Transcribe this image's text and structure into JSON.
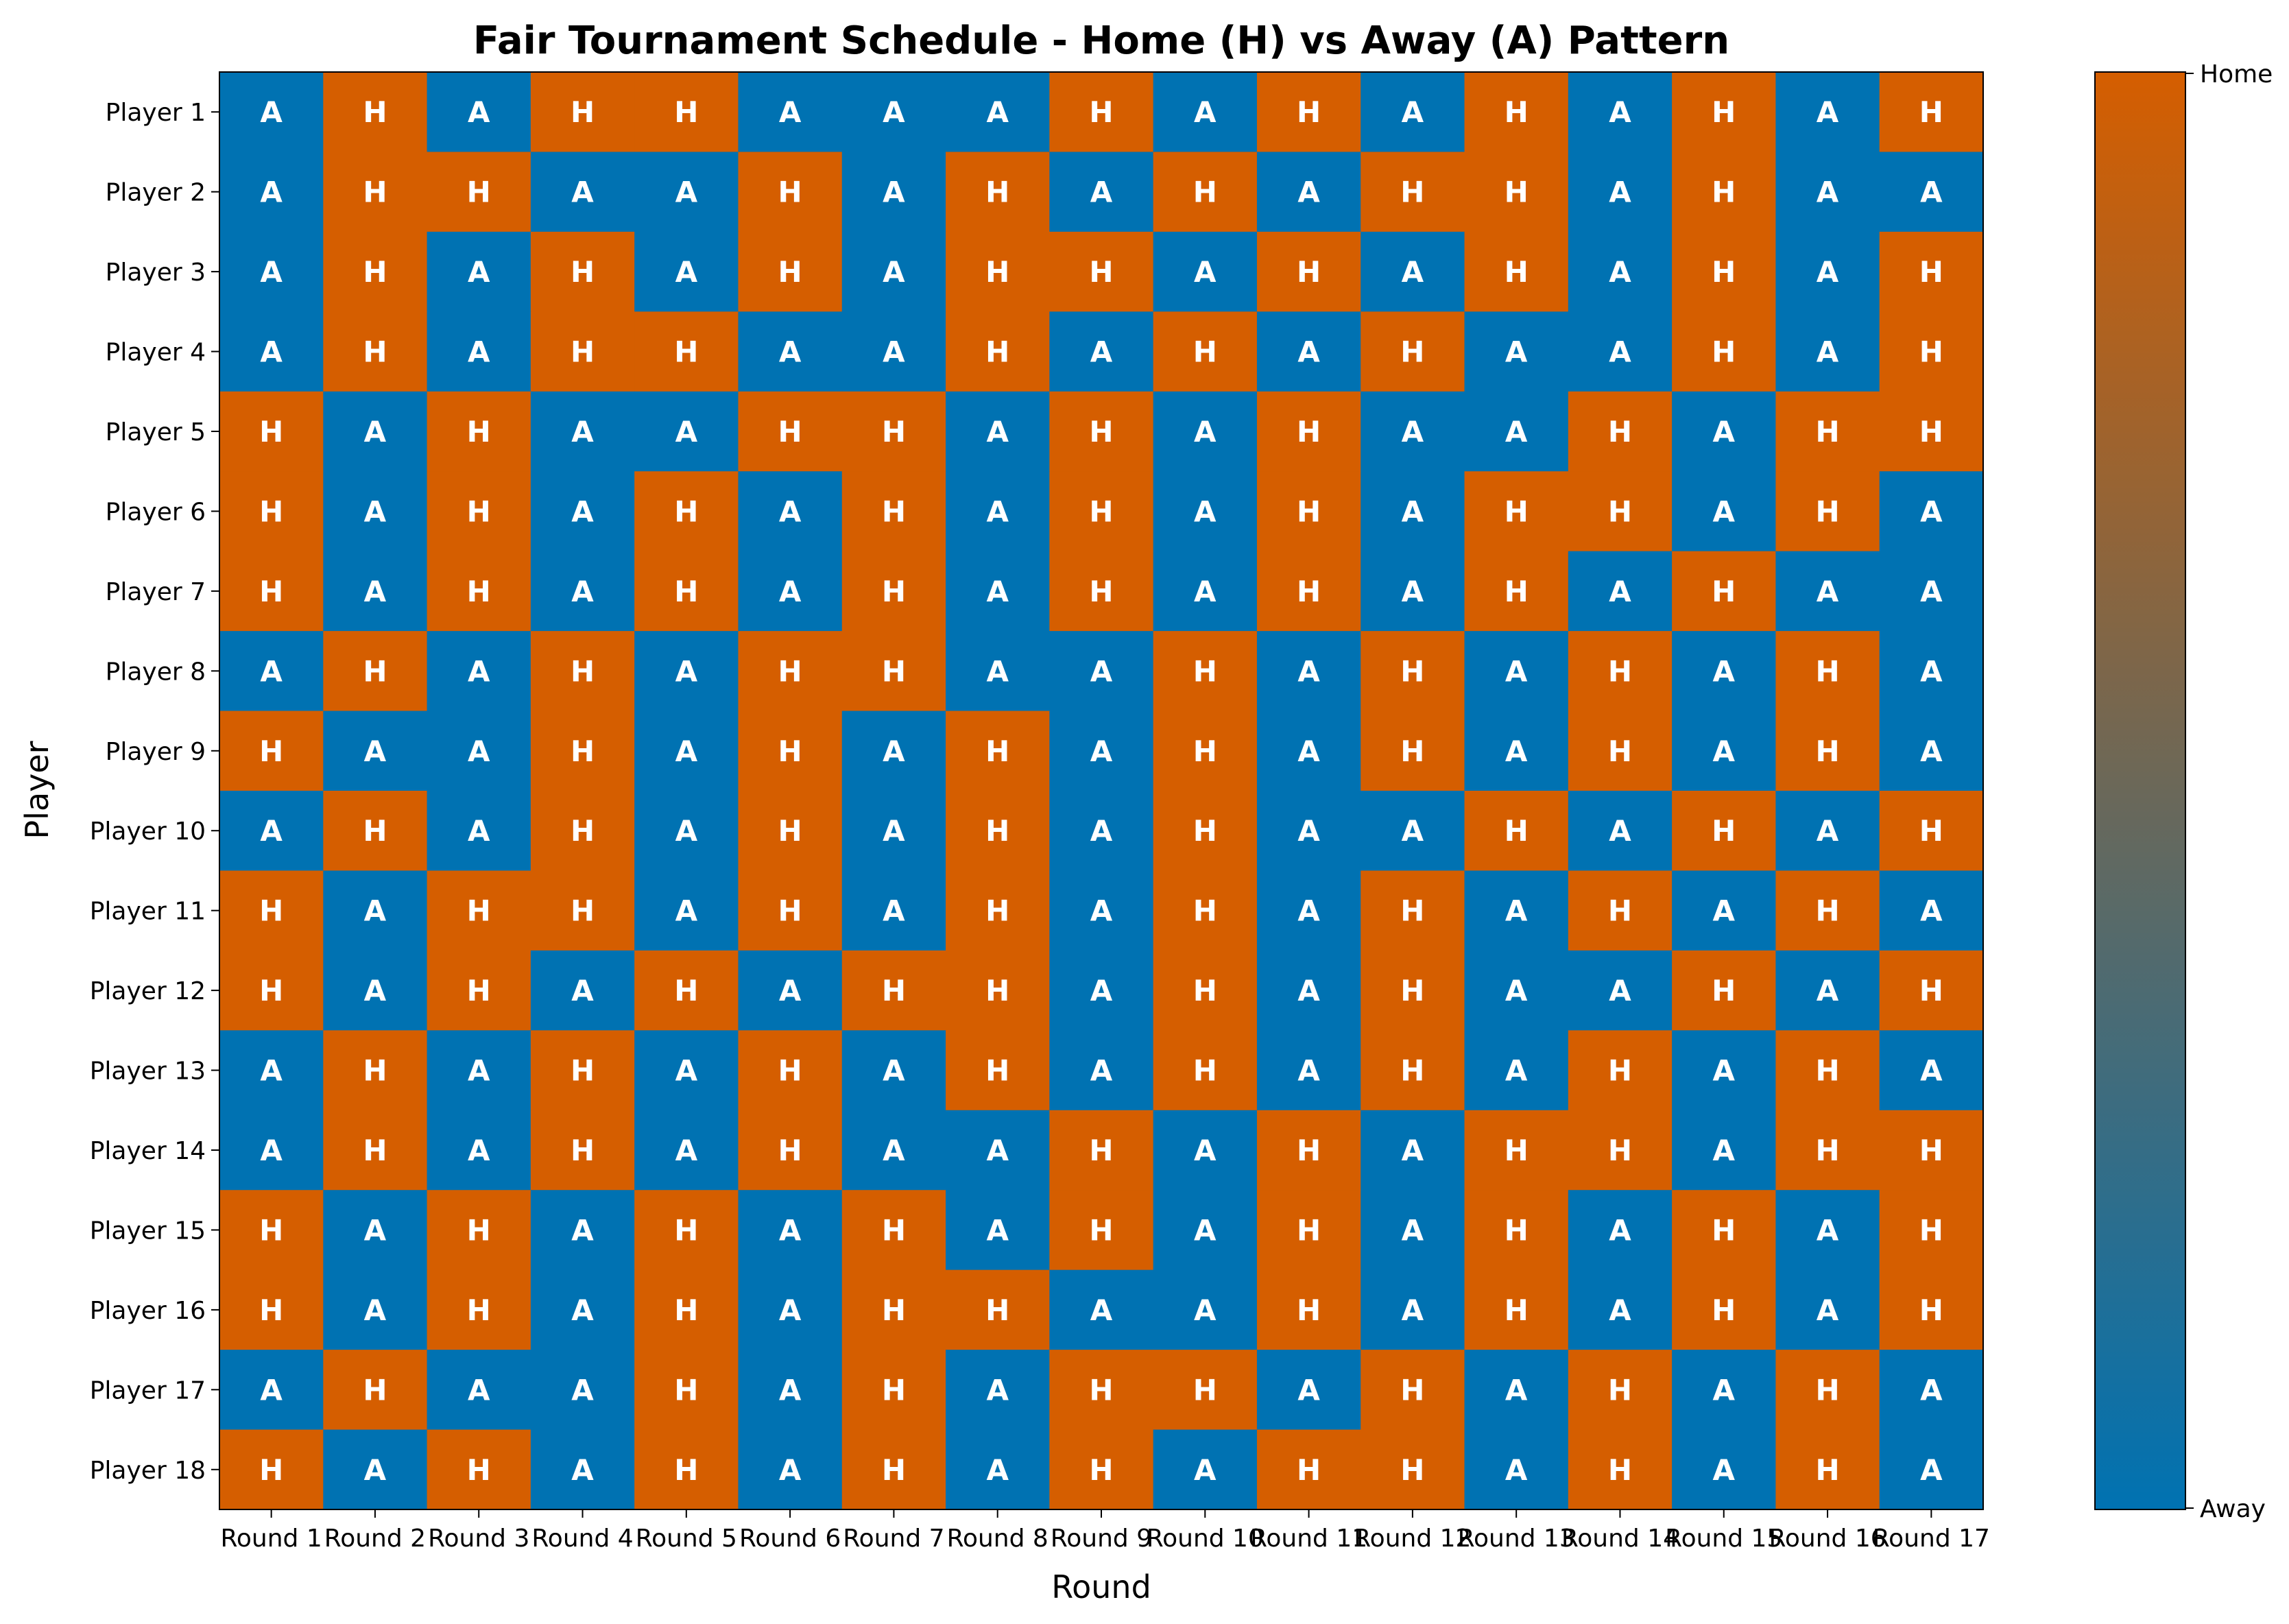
{
  "chart_data": {
    "type": "heatmap",
    "title": "Fair Tournament Schedule - Home (H) vs Away (A) Pattern",
    "xlabel": "Round",
    "ylabel": "Player",
    "x_categories": [
      "Round 1",
      "Round 2",
      "Round 3",
      "Round 4",
      "Round 5",
      "Round 6",
      "Round 7",
      "Round 8",
      "Round 9",
      "Round 10",
      "Round 11",
      "Round 12",
      "Round 13",
      "Round 14",
      "Round 15",
      "Round 16",
      "Round 17"
    ],
    "y_categories": [
      "Player 1",
      "Player 2",
      "Player 3",
      "Player 4",
      "Player 5",
      "Player 6",
      "Player 7",
      "Player 8",
      "Player 9",
      "Player 10",
      "Player 11",
      "Player 12",
      "Player 13",
      "Player 14",
      "Player 15",
      "Player 16",
      "Player 17",
      "Player 18"
    ],
    "values": [
      [
        "A",
        "H",
        "A",
        "H",
        "H",
        "A",
        "A",
        "A",
        "H",
        "A",
        "H",
        "A",
        "H",
        "A",
        "H",
        "A",
        "H"
      ],
      [
        "A",
        "H",
        "H",
        "A",
        "A",
        "H",
        "A",
        "H",
        "A",
        "H",
        "A",
        "H",
        "H",
        "A",
        "H",
        "A",
        "A"
      ],
      [
        "A",
        "H",
        "A",
        "H",
        "A",
        "H",
        "A",
        "H",
        "H",
        "A",
        "H",
        "A",
        "H",
        "A",
        "H",
        "A",
        "H"
      ],
      [
        "A",
        "H",
        "A",
        "H",
        "H",
        "A",
        "A",
        "H",
        "A",
        "H",
        "A",
        "H",
        "A",
        "A",
        "H",
        "A",
        "H"
      ],
      [
        "H",
        "A",
        "H",
        "A",
        "A",
        "H",
        "H",
        "A",
        "H",
        "A",
        "H",
        "A",
        "A",
        "H",
        "A",
        "H",
        "H"
      ],
      [
        "H",
        "A",
        "H",
        "A",
        "H",
        "A",
        "H",
        "A",
        "H",
        "A",
        "H",
        "A",
        "H",
        "H",
        "A",
        "H",
        "A"
      ],
      [
        "H",
        "A",
        "H",
        "A",
        "H",
        "A",
        "H",
        "A",
        "H",
        "A",
        "H",
        "A",
        "H",
        "A",
        "H",
        "A",
        "A"
      ],
      [
        "A",
        "H",
        "A",
        "H",
        "A",
        "H",
        "H",
        "A",
        "A",
        "H",
        "A",
        "H",
        "A",
        "H",
        "A",
        "H",
        "A"
      ],
      [
        "H",
        "A",
        "A",
        "H",
        "A",
        "H",
        "A",
        "H",
        "A",
        "H",
        "A",
        "H",
        "A",
        "H",
        "A",
        "H",
        "A"
      ],
      [
        "A",
        "H",
        "A",
        "H",
        "A",
        "H",
        "A",
        "H",
        "A",
        "H",
        "A",
        "A",
        "H",
        "A",
        "H",
        "A",
        "H"
      ],
      [
        "H",
        "A",
        "H",
        "H",
        "A",
        "H",
        "A",
        "H",
        "A",
        "H",
        "A",
        "H",
        "A",
        "H",
        "A",
        "H",
        "A"
      ],
      [
        "H",
        "A",
        "H",
        "A",
        "H",
        "A",
        "H",
        "H",
        "A",
        "H",
        "A",
        "H",
        "A",
        "A",
        "H",
        "A",
        "H"
      ],
      [
        "A",
        "H",
        "A",
        "H",
        "A",
        "H",
        "A",
        "H",
        "A",
        "H",
        "A",
        "H",
        "A",
        "H",
        "A",
        "H",
        "A"
      ],
      [
        "A",
        "H",
        "A",
        "H",
        "A",
        "H",
        "A",
        "A",
        "H",
        "A",
        "H",
        "A",
        "H",
        "H",
        "A",
        "H",
        "H"
      ],
      [
        "H",
        "A",
        "H",
        "A",
        "H",
        "A",
        "H",
        "A",
        "H",
        "A",
        "H",
        "A",
        "H",
        "A",
        "H",
        "A",
        "H"
      ],
      [
        "H",
        "A",
        "H",
        "A",
        "H",
        "A",
        "H",
        "H",
        "A",
        "A",
        "H",
        "A",
        "H",
        "A",
        "H",
        "A",
        "H"
      ],
      [
        "A",
        "H",
        "A",
        "A",
        "H",
        "A",
        "H",
        "A",
        "H",
        "H",
        "A",
        "H",
        "A",
        "H",
        "A",
        "H",
        "A"
      ],
      [
        "H",
        "A",
        "H",
        "A",
        "H",
        "A",
        "H",
        "A",
        "H",
        "A",
        "H",
        "H",
        "A",
        "H",
        "A",
        "H",
        "A"
      ]
    ],
    "colorbar": {
      "labels": [
        "Away",
        "Home"
      ],
      "away_color": "#0072B2",
      "home_color": "#D55E00"
    },
    "grid": false
  }
}
